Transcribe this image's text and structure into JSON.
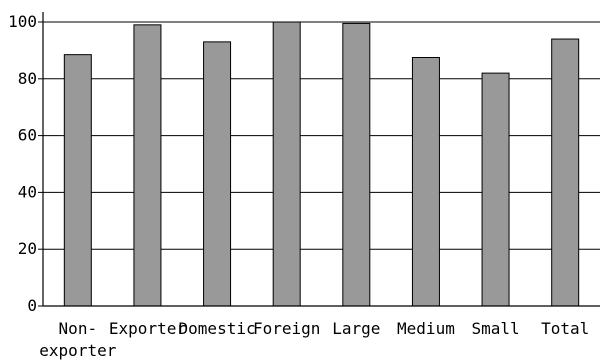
{
  "chart_data": {
    "type": "bar",
    "title": "",
    "xlabel": "",
    "ylabel": "",
    "ylim": [
      0,
      100
    ],
    "yticks": [
      0,
      20,
      40,
      60,
      80,
      100
    ],
    "grid": true,
    "bar_color": "#999999",
    "categories": [
      [
        "Non-",
        "exporter"
      ],
      [
        "Exporter"
      ],
      [
        "Domestic"
      ],
      [
        "Foreign"
      ],
      [
        "Large"
      ],
      [
        "Medium"
      ],
      [
        "Small"
      ],
      [
        "Total"
      ]
    ],
    "values": [
      88.5,
      99,
      93,
      100,
      99.5,
      87.5,
      82,
      94
    ]
  }
}
